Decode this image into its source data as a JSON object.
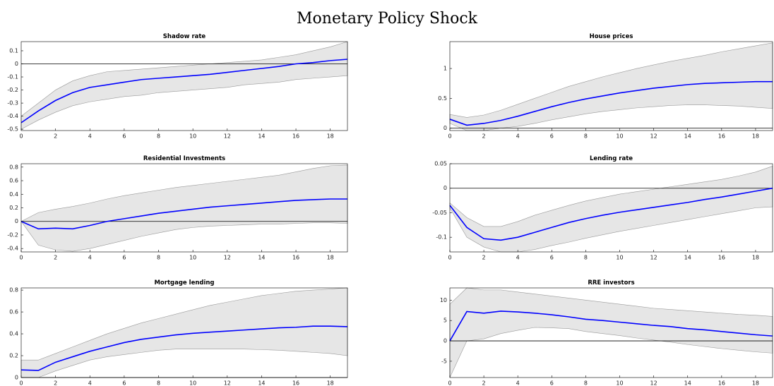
{
  "title": "Monetary Policy Shock",
  "chart_data": [
    {
      "type": "line",
      "title": "Shadow rate",
      "x": [
        0,
        1,
        2,
        3,
        4,
        5,
        6,
        7,
        8,
        9,
        10,
        11,
        12,
        13,
        14,
        15,
        16,
        17,
        18,
        19
      ],
      "series": [
        {
          "color": "#0000ff",
          "values": [
            -0.45,
            -0.36,
            -0.28,
            -0.22,
            -0.18,
            -0.16,
            -0.14,
            -0.12,
            -0.11,
            -0.1,
            -0.09,
            -0.08,
            -0.065,
            -0.05,
            -0.035,
            -0.02,
            0.0,
            0.01,
            0.025,
            0.035
          ]
        }
      ],
      "band": {
        "color": "#e6e6e6",
        "upper": [
          -0.4,
          -0.3,
          -0.2,
          -0.13,
          -0.09,
          -0.06,
          -0.05,
          -0.04,
          -0.03,
          -0.02,
          -0.01,
          0.0,
          0.01,
          0.02,
          0.03,
          0.05,
          0.07,
          0.1,
          0.13,
          0.17
        ],
        "lower": [
          -0.5,
          -0.43,
          -0.37,
          -0.32,
          -0.29,
          -0.27,
          -0.25,
          -0.24,
          -0.22,
          -0.21,
          -0.2,
          -0.19,
          -0.18,
          -0.16,
          -0.15,
          -0.14,
          -0.12,
          -0.11,
          -0.1,
          -0.09
        ]
      },
      "zero_line": true,
      "xlim": [
        0,
        19
      ],
      "xticks": [
        0,
        2,
        4,
        6,
        8,
        10,
        12,
        14,
        16,
        18
      ],
      "ylim": [
        -0.51,
        0.17
      ],
      "yticks": [
        -0.5,
        -0.4,
        -0.3,
        -0.2,
        -0.1,
        0,
        0.1
      ]
    },
    {
      "type": "line",
      "title": "House prices",
      "x": [
        0,
        1,
        2,
        3,
        4,
        5,
        6,
        7,
        8,
        9,
        10,
        11,
        12,
        13,
        14,
        15,
        16,
        17,
        18,
        19
      ],
      "series": [
        {
          "color": "#0000ff",
          "values": [
            0.15,
            0.05,
            0.08,
            0.13,
            0.2,
            0.28,
            0.36,
            0.43,
            0.49,
            0.54,
            0.59,
            0.63,
            0.67,
            0.7,
            0.73,
            0.75,
            0.76,
            0.77,
            0.78,
            0.78
          ]
        }
      ],
      "band": {
        "color": "#e6e6e6",
        "upper": [
          0.23,
          0.18,
          0.22,
          0.3,
          0.4,
          0.5,
          0.6,
          0.7,
          0.78,
          0.86,
          0.93,
          1.0,
          1.06,
          1.12,
          1.17,
          1.22,
          1.28,
          1.33,
          1.38,
          1.43
        ],
        "lower": [
          0.08,
          -0.04,
          -0.04,
          0.0,
          0.03,
          0.08,
          0.14,
          0.19,
          0.24,
          0.28,
          0.31,
          0.34,
          0.36,
          0.38,
          0.39,
          0.39,
          0.38,
          0.37,
          0.35,
          0.33
        ]
      },
      "zero_line": true,
      "xlim": [
        0,
        19
      ],
      "xticks": [
        0,
        2,
        4,
        6,
        8,
        10,
        12,
        14,
        16,
        18
      ],
      "ylim": [
        -0.04,
        1.45
      ],
      "yticks": [
        0,
        0.5,
        1
      ]
    },
    {
      "type": "line",
      "title": "Residential Investments",
      "x": [
        0,
        1,
        2,
        3,
        4,
        5,
        6,
        7,
        8,
        9,
        10,
        11,
        12,
        13,
        14,
        15,
        16,
        17,
        18,
        19
      ],
      "series": [
        {
          "color": "#0000ff",
          "values": [
            0,
            -0.11,
            -0.1,
            -0.11,
            -0.06,
            0,
            0.04,
            0.08,
            0.12,
            0.15,
            0.18,
            0.21,
            0.23,
            0.25,
            0.27,
            0.29,
            0.31,
            0.32,
            0.33,
            0.33
          ]
        }
      ],
      "band": {
        "color": "#e6e6e6",
        "upper": [
          0,
          0.13,
          0.18,
          0.22,
          0.27,
          0.33,
          0.38,
          0.42,
          0.46,
          0.5,
          0.53,
          0.56,
          0.59,
          0.62,
          0.65,
          0.68,
          0.73,
          0.78,
          0.82,
          0.83
        ],
        "lower": [
          0,
          -0.35,
          -0.42,
          -0.44,
          -0.4,
          -0.34,
          -0.28,
          -0.22,
          -0.17,
          -0.12,
          -0.09,
          -0.07,
          -0.06,
          -0.05,
          -0.04,
          -0.04,
          -0.03,
          -0.02,
          -0.02,
          -0.03
        ]
      },
      "zero_line": true,
      "xlim": [
        0,
        19
      ],
      "xticks": [
        0,
        2,
        4,
        6,
        8,
        10,
        12,
        14,
        16,
        18
      ],
      "ylim": [
        -0.45,
        0.85
      ],
      "yticks": [
        -0.4,
        -0.2,
        0,
        0.2,
        0.4,
        0.6,
        0.8
      ]
    },
    {
      "type": "line",
      "title": "Lending rate",
      "x": [
        0,
        1,
        2,
        3,
        4,
        5,
        6,
        7,
        8,
        9,
        10,
        11,
        12,
        13,
        14,
        15,
        16,
        17,
        18,
        19
      ],
      "series": [
        {
          "color": "#0000ff",
          "values": [
            -0.035,
            -0.08,
            -0.103,
            -0.106,
            -0.1,
            -0.09,
            -0.08,
            -0.07,
            -0.062,
            -0.055,
            -0.049,
            -0.044,
            -0.039,
            -0.034,
            -0.029,
            -0.023,
            -0.018,
            -0.012,
            -0.006,
            0.0
          ]
        }
      ],
      "band": {
        "color": "#e6e6e6",
        "upper": [
          -0.03,
          -0.06,
          -0.078,
          -0.078,
          -0.068,
          -0.055,
          -0.045,
          -0.035,
          -0.026,
          -0.019,
          -0.012,
          -0.007,
          -0.002,
          0.003,
          0.008,
          0.013,
          0.018,
          0.025,
          0.033,
          0.045
        ],
        "lower": [
          -0.04,
          -0.1,
          -0.12,
          -0.13,
          -0.13,
          -0.125,
          -0.117,
          -0.11,
          -0.102,
          -0.095,
          -0.088,
          -0.082,
          -0.076,
          -0.07,
          -0.064,
          -0.058,
          -0.052,
          -0.046,
          -0.04,
          -0.038
        ]
      },
      "zero_line": true,
      "xlim": [
        0,
        19
      ],
      "xticks": [
        0,
        2,
        4,
        6,
        8,
        10,
        12,
        14,
        16,
        18
      ],
      "ylim": [
        -0.13,
        0.05
      ],
      "yticks": [
        -0.1,
        -0.05,
        0,
        0.05
      ]
    },
    {
      "type": "line",
      "title": "Mortgage lending",
      "x": [
        0,
        1,
        2,
        3,
        4,
        5,
        6,
        7,
        8,
        9,
        10,
        11,
        12,
        13,
        14,
        15,
        16,
        17,
        18,
        19
      ],
      "series": [
        {
          "color": "#0000ff",
          "values": [
            0.07,
            0.065,
            0.14,
            0.19,
            0.24,
            0.28,
            0.32,
            0.35,
            0.37,
            0.39,
            0.405,
            0.415,
            0.425,
            0.435,
            0.445,
            0.455,
            0.46,
            0.47,
            0.47,
            0.465
          ]
        }
      ],
      "band": {
        "color": "#e6e6e6",
        "upper": [
          0.16,
          0.16,
          0.22,
          0.28,
          0.34,
          0.4,
          0.45,
          0.5,
          0.54,
          0.58,
          0.62,
          0.66,
          0.69,
          0.72,
          0.75,
          0.77,
          0.79,
          0.8,
          0.81,
          0.82
        ],
        "lower": [
          0.0,
          0.0,
          0.06,
          0.11,
          0.16,
          0.19,
          0.21,
          0.23,
          0.25,
          0.26,
          0.26,
          0.26,
          0.26,
          0.26,
          0.255,
          0.25,
          0.24,
          0.23,
          0.22,
          0.2
        ]
      },
      "zero_line": true,
      "xlim": [
        0,
        19
      ],
      "xticks": [
        0,
        2,
        4,
        6,
        8,
        10,
        12,
        14,
        16,
        18
      ],
      "ylim": [
        0,
        0.82
      ],
      "yticks": [
        0,
        0.2,
        0.4,
        0.6,
        0.8
      ]
    },
    {
      "type": "line",
      "title": "RRE investors",
      "x": [
        0,
        1,
        2,
        3,
        4,
        5,
        6,
        7,
        8,
        9,
        10,
        11,
        12,
        13,
        14,
        15,
        16,
        17,
        18,
        19
      ],
      "series": [
        {
          "color": "#0000ff",
          "values": [
            0,
            7.2,
            6.8,
            7.3,
            7.1,
            6.8,
            6.4,
            5.9,
            5.3,
            5.0,
            4.6,
            4.2,
            3.8,
            3.5,
            3.0,
            2.7,
            2.3,
            1.9,
            1.5,
            1.2
          ]
        }
      ],
      "band": {
        "color": "#e6e6e6",
        "upper": [
          9,
          13,
          12.5,
          12.5,
          12,
          11.5,
          11,
          10.5,
          10,
          9.5,
          9,
          8.5,
          8,
          7.7,
          7.4,
          7.1,
          6.8,
          6.5,
          6.3,
          6.0
        ],
        "lower": [
          -9,
          0,
          0.5,
          1.8,
          2.6,
          3.3,
          3.2,
          3.0,
          2.3,
          1.8,
          1.3,
          0.7,
          0.2,
          -0.3,
          -0.9,
          -1.4,
          -1.9,
          -2.3,
          -2.7,
          -3.0
        ]
      },
      "zero_line": true,
      "xlim": [
        0,
        19
      ],
      "xticks": [
        0,
        2,
        4,
        6,
        8,
        10,
        12,
        14,
        16,
        18
      ],
      "ylim": [
        -9,
        13
      ],
      "yticks": [
        -5,
        0,
        5,
        10
      ]
    }
  ]
}
